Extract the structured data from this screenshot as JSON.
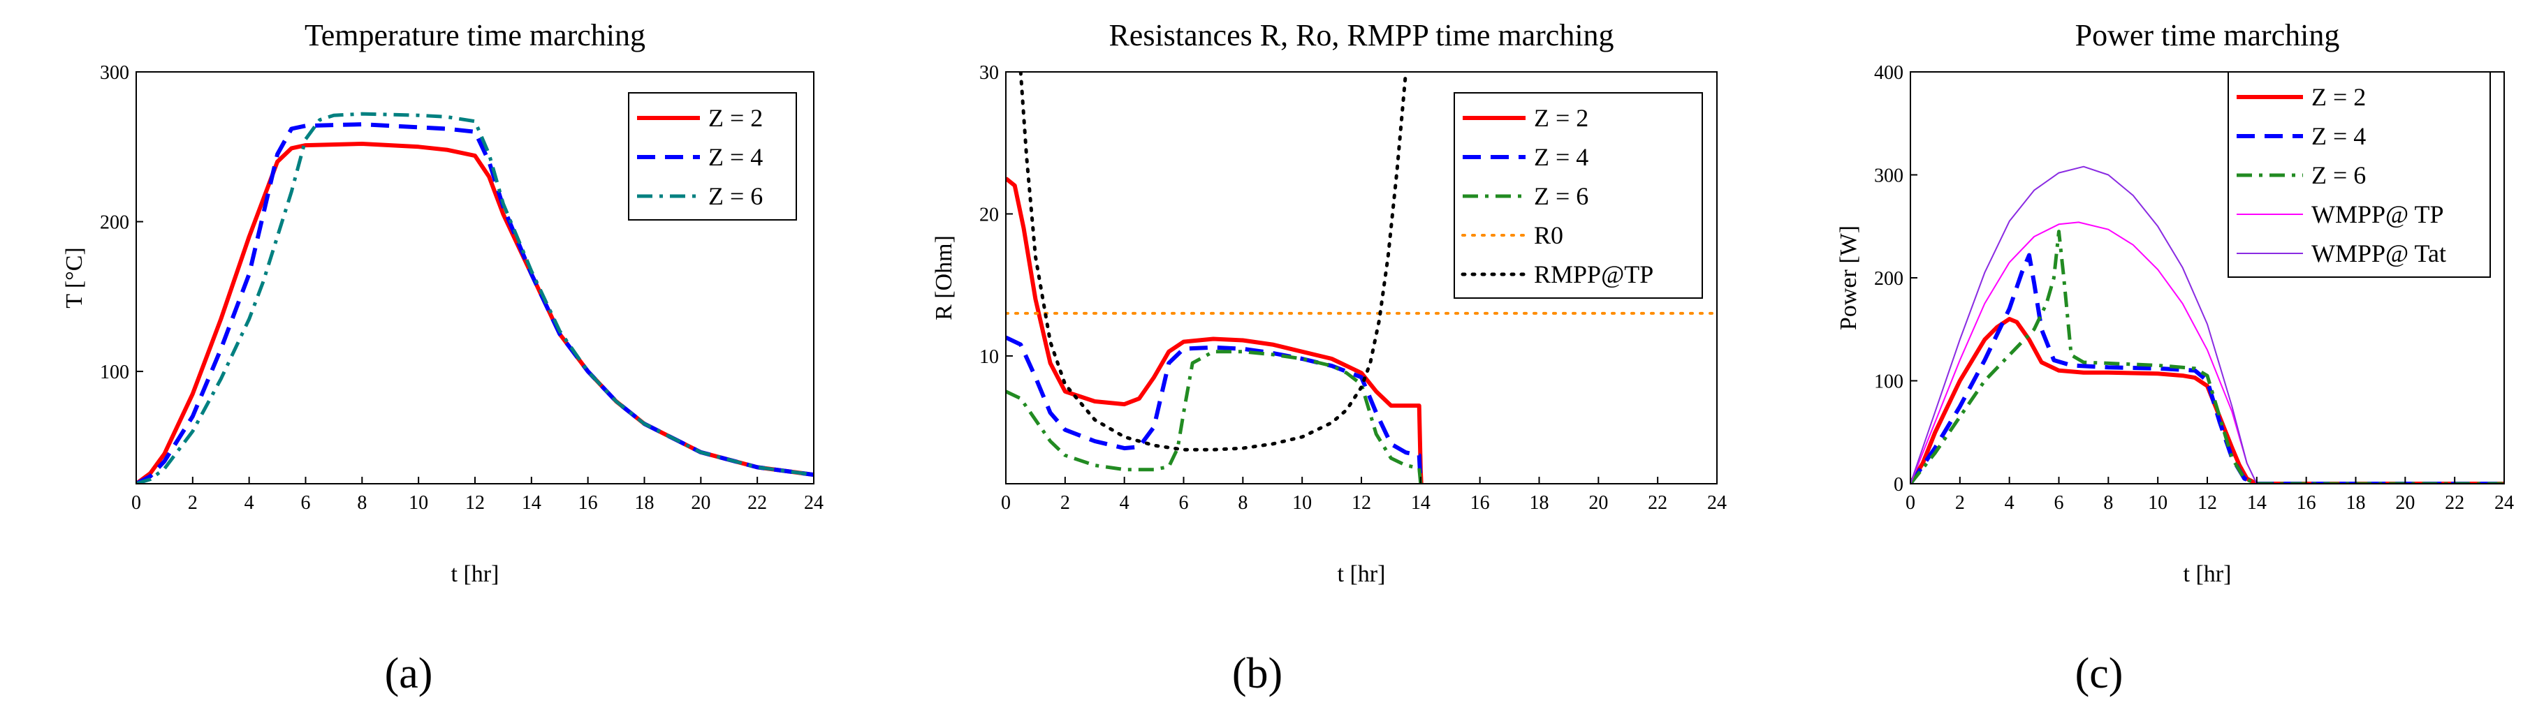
{
  "panel_labels": [
    "(a)",
    "(b)",
    "(c)"
  ],
  "chart_data": [
    {
      "type": "line",
      "title": "Temperature time marching",
      "xlabel": "t [hr]",
      "ylabel": "T [°C]",
      "xlim": [
        0,
        24
      ],
      "ylim": [
        25,
        300
      ],
      "xticks": [
        "0",
        "2",
        "4",
        "6",
        "8",
        "10",
        "12",
        "14",
        "16",
        "18",
        "20",
        "22",
        "24"
      ],
      "yticks": [
        "100",
        "200",
        "300"
      ],
      "ytick_values": [
        100,
        200,
        300
      ],
      "grid": false,
      "legend": "top-right",
      "series": [
        {
          "name": "Z = 2",
          "color": "#ff0000",
          "style": "solid",
          "width": 6,
          "x": [
            0,
            0.5,
            1,
            2,
            3,
            4,
            4.5,
            5,
            5.5,
            6,
            8,
            10,
            11,
            12,
            12.5,
            13,
            14,
            15,
            16,
            17,
            18,
            20,
            22,
            24
          ],
          "y": [
            25,
            32,
            45,
            85,
            135,
            190,
            215,
            240,
            249,
            251,
            252,
            250,
            248,
            244,
            230,
            205,
            165,
            125,
            100,
            80,
            65,
            46,
            36,
            31
          ]
        },
        {
          "name": "Z = 4",
          "color": "#0000ff",
          "style": "dash",
          "width": 6,
          "x": [
            0,
            0.5,
            1,
            2,
            3,
            4,
            4.5,
            5,
            5.5,
            6,
            8,
            10,
            11,
            12,
            12.5,
            13,
            14,
            15,
            16,
            17,
            18,
            20,
            22,
            24
          ],
          "y": [
            25,
            30,
            40,
            70,
            115,
            165,
            205,
            245,
            262,
            264,
            265,
            263,
            262,
            260,
            240,
            210,
            165,
            125,
            100,
            80,
            65,
            46,
            36,
            31
          ]
        },
        {
          "name": "Z = 6",
          "color": "#008080",
          "style": "dashdot",
          "width": 5,
          "x": [
            0,
            0.5,
            1,
            2,
            3,
            4,
            4.5,
            5,
            5.5,
            6,
            6.5,
            7,
            8,
            10,
            11,
            12,
            12.5,
            13,
            14,
            15,
            16,
            17,
            18,
            20,
            22,
            24
          ],
          "y": [
            25,
            28,
            35,
            60,
            95,
            135,
            160,
            190,
            220,
            255,
            268,
            271,
            272,
            271,
            270,
            267,
            245,
            212,
            167,
            127,
            100,
            80,
            65,
            46,
            36,
            31
          ]
        }
      ]
    },
    {
      "type": "line",
      "title": "Resistances R, Ro, RMPP time marching",
      "xlabel": "t [hr]",
      "ylabel": "R [Ohm]",
      "xlim": [
        0,
        24
      ],
      "ylim": [
        1,
        30
      ],
      "xticks": [
        "0",
        "2",
        "4",
        "6",
        "8",
        "10",
        "12",
        "14",
        "16",
        "18",
        "20",
        "22",
        "24"
      ],
      "yticks": [
        "10",
        "20",
        "30"
      ],
      "ytick_values": [
        10,
        20,
        30
      ],
      "grid": false,
      "legend": "top-right",
      "series": [
        {
          "name": "Z = 2",
          "color": "#ff0000",
          "style": "solid",
          "width": 6,
          "x": [
            0,
            0.3,
            0.6,
            1,
            1.5,
            2,
            3,
            4,
            4.5,
            5,
            5.5,
            6,
            7,
            8,
            9,
            10,
            11,
            12,
            12.5,
            13,
            13.5,
            13.95,
            14,
            14.02
          ],
          "y": [
            22.5,
            22,
            19,
            14,
            9.5,
            7.5,
            6.8,
            6.6,
            7,
            8.5,
            10.3,
            11,
            11.2,
            11.1,
            10.8,
            10.3,
            9.8,
            8.8,
            7.5,
            6.5,
            6.5,
            6.5,
            2,
            1
          ]
        },
        {
          "name": "Z = 4",
          "color": "#0000ff",
          "style": "dash",
          "width": 6,
          "x": [
            0,
            0.5,
            1,
            1.5,
            2,
            3,
            4,
            4.5,
            5,
            5.5,
            6,
            7,
            8,
            9,
            10,
            11,
            12,
            12.5,
            13,
            13.5,
            13.95,
            14
          ],
          "y": [
            11.3,
            10.8,
            8.5,
            6,
            4.8,
            4,
            3.5,
            3.6,
            5,
            9.5,
            10.5,
            10.6,
            10.5,
            10.2,
            9.8,
            9.3,
            8.5,
            6,
            3.8,
            3.2,
            3,
            1
          ]
        },
        {
          "name": "Z = 6",
          "color": "#228b22",
          "style": "dashdot",
          "width": 5,
          "x": [
            0,
            0.5,
            1,
            1.5,
            2,
            3,
            4,
            5,
            5.5,
            5.8,
            6,
            6.3,
            7,
            8,
            9,
            10,
            11,
            11.5,
            12,
            12.5,
            13,
            13.5,
            13.95,
            14
          ],
          "y": [
            7.5,
            7,
            5.5,
            4,
            3,
            2.3,
            2,
            2,
            2.2,
            3.5,
            6,
            9.5,
            10.3,
            10.3,
            10.1,
            9.8,
            9.3,
            8.8,
            8,
            4.5,
            2.8,
            2.3,
            2.1,
            1
          ]
        },
        {
          "name": "R0",
          "color": "#ff8c00",
          "style": "dot",
          "width": 4,
          "x": [
            0,
            24
          ],
          "y": [
            13,
            13
          ]
        },
        {
          "name": "RMPP@TP",
          "color": "#000000",
          "style": "dot",
          "width": 5,
          "x": [
            0.5,
            0.7,
            1,
            1.5,
            2,
            3,
            4,
            5,
            6,
            7,
            8,
            9,
            10,
            11,
            11.5,
            12,
            12.3,
            12.6,
            12.9,
            13.2,
            13.5
          ],
          "y": [
            30,
            24,
            17,
            11,
            8,
            5.5,
            4.3,
            3.7,
            3.4,
            3.4,
            3.5,
            3.8,
            4.3,
            5.3,
            6.2,
            7.8,
            9.5,
            12.5,
            17,
            23,
            30
          ]
        }
      ]
    },
    {
      "type": "line",
      "title": "Power time marching",
      "xlabel": "t [hr]",
      "ylabel": "Power [W]",
      "xlim": [
        0,
        24
      ],
      "ylim": [
        0,
        400
      ],
      "xticks": [
        "0",
        "2",
        "4",
        "6",
        "8",
        "10",
        "12",
        "14",
        "16",
        "18",
        "20",
        "22",
        "24"
      ],
      "yticks": [
        "0",
        "100",
        "200",
        "300",
        "400"
      ],
      "ytick_values": [
        0,
        100,
        200,
        300,
        400
      ],
      "grid": false,
      "legend": "top-right",
      "series": [
        {
          "name": "Z = 2",
          "color": "#ff0000",
          "style": "solid",
          "width": 6,
          "x": [
            0,
            0.5,
            1,
            2,
            3,
            3.5,
            4,
            4.3,
            4.8,
            5.3,
            6,
            7,
            8,
            10,
            11,
            11.5,
            12,
            12.5,
            13,
            13.3,
            13.6,
            14,
            16,
            18,
            20,
            22,
            24
          ],
          "y": [
            0,
            20,
            50,
            100,
            140,
            152,
            160,
            157,
            140,
            118,
            110,
            108,
            108,
            107,
            105,
            103,
            95,
            65,
            35,
            18,
            5,
            0,
            0,
            0,
            0,
            0,
            0
          ]
        },
        {
          "name": "Z = 4",
          "color": "#0000ff",
          "style": "dash",
          "width": 6,
          "x": [
            0,
            1,
            2,
            3,
            4,
            4.5,
            4.8,
            5,
            5.3,
            5.8,
            6.5,
            8,
            10,
            11.5,
            12,
            12.5,
            13,
            13.5,
            14,
            16,
            18,
            20,
            22,
            24
          ],
          "y": [
            0,
            35,
            75,
            120,
            170,
            205,
            222,
            195,
            150,
            120,
            115,
            113,
            112,
            110,
            100,
            60,
            25,
            5,
            0,
            0,
            0,
            0,
            0,
            0
          ]
        },
        {
          "name": "Z = 6",
          "color": "#228b22",
          "style": "dashdot",
          "width": 5,
          "x": [
            0,
            1,
            2,
            3,
            4,
            5,
            5.5,
            5.8,
            6,
            6.2,
            6.5,
            7,
            8,
            10,
            11.5,
            12,
            12.5,
            13,
            13.5,
            14,
            16,
            18,
            20,
            22,
            24
          ],
          "y": [
            0,
            30,
            65,
            100,
            125,
            150,
            175,
            200,
            245,
            200,
            125,
            118,
            117,
            115,
            112,
            105,
            65,
            25,
            5,
            0,
            0,
            0,
            0,
            0,
            0
          ]
        },
        {
          "name": "WMPP@ TP",
          "color": "#ff00ff",
          "style": "solid",
          "width": 2,
          "x": [
            0,
            1,
            2,
            3,
            4,
            5,
            6,
            6.8,
            8,
            9,
            10,
            11,
            12,
            13,
            13.6,
            14,
            16,
            18,
            20,
            22,
            24
          ],
          "y": [
            0,
            60,
            120,
            175,
            215,
            240,
            252,
            254,
            247,
            232,
            208,
            175,
            130,
            70,
            20,
            0,
            0,
            0,
            0,
            0,
            0
          ]
        },
        {
          "name": "WMPP@ Tat",
          "color": "#8a2be2",
          "style": "solid",
          "width": 2,
          "x": [
            0,
            1,
            2,
            3,
            4,
            5,
            6,
            7,
            8,
            9,
            10,
            11,
            12,
            13,
            13.6,
            14,
            16,
            18,
            20,
            22,
            24
          ],
          "y": [
            0,
            70,
            140,
            205,
            255,
            285,
            302,
            308,
            300,
            280,
            250,
            210,
            155,
            75,
            20,
            0,
            0,
            0,
            0,
            0,
            0
          ]
        }
      ]
    }
  ]
}
